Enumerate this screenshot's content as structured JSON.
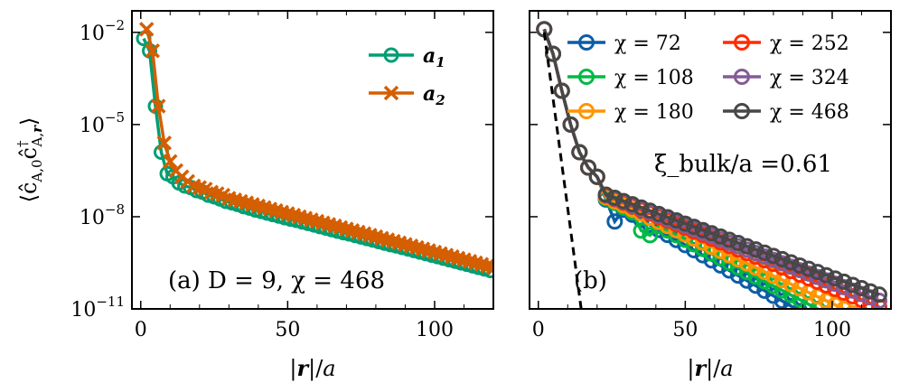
{
  "chart_data": [
    {
      "panel": "a",
      "type": "line",
      "scale_y": "log",
      "xlim": [
        -3,
        120
      ],
      "ylog_range": [
        -11,
        -1.3
      ],
      "x_ticks": [
        0,
        50,
        100
      ],
      "x_tick_labels": [
        "0",
        "50",
        "100"
      ],
      "y_ticks": [
        -2,
        -5,
        -8,
        -11
      ],
      "y_tick_labels": [
        {
          "base": "10",
          "exp": "−2"
        },
        {
          "base": "10",
          "exp": "−5"
        },
        {
          "base": "10",
          "exp": "−8"
        },
        {
          "base": "10",
          "exp": "−11"
        }
      ],
      "xlabel": "|r|/a",
      "ylabel": "⟨ĉ_{A,0} ĉ†_{A,r}⟩",
      "annotation": "(a) D = 9, χ = 468",
      "series": [
        {
          "name": "a1",
          "label_base": "a",
          "label_sub": "1",
          "color": "#009e73",
          "marker": "circle",
          "x": [
            1,
            3,
            5,
            7,
            9,
            11,
            13,
            15,
            17,
            19,
            21,
            23,
            25,
            27,
            29,
            31,
            33,
            35,
            37,
            39,
            41,
            43,
            45,
            47,
            49,
            51,
            53,
            55,
            57,
            59,
            61,
            63,
            65,
            67,
            69,
            71,
            73,
            75,
            77,
            79,
            81,
            83,
            85,
            87,
            89,
            91,
            93,
            95,
            97,
            99,
            101,
            103,
            105,
            107,
            109,
            111,
            113,
            115,
            117,
            119
          ],
          "logy": [
            -2.2,
            -2.6,
            -4.4,
            -5.9,
            -6.6,
            -6.7,
            -6.9,
            -7.0,
            -7.05,
            -7.15,
            -7.2,
            -7.3,
            -7.35,
            -7.42,
            -7.5,
            -7.55,
            -7.6,
            -7.67,
            -7.72,
            -7.78,
            -7.83,
            -7.88,
            -7.93,
            -7.98,
            -8.03,
            -8.08,
            -8.12,
            -8.17,
            -8.22,
            -8.27,
            -8.32,
            -8.37,
            -8.42,
            -8.47,
            -8.52,
            -8.56,
            -8.61,
            -8.66,
            -8.71,
            -8.76,
            -8.81,
            -8.86,
            -8.91,
            -8.95,
            -9.0,
            -9.05,
            -9.1,
            -9.15,
            -9.2,
            -9.25,
            -9.3,
            -9.35,
            -9.4,
            -9.45,
            -9.5,
            -9.55,
            -9.6,
            -9.65,
            -9.7,
            -9.75
          ]
        },
        {
          "name": "a2",
          "label_base": "a",
          "label_sub": "2",
          "color": "#d55e00",
          "marker": "x",
          "x": [
            2,
            4,
            6,
            8,
            10,
            12,
            14,
            16,
            18,
            20,
            22,
            24,
            26,
            28,
            30,
            32,
            34,
            36,
            38,
            40,
            42,
            44,
            46,
            48,
            50,
            52,
            54,
            56,
            58,
            60,
            62,
            64,
            66,
            68,
            70,
            72,
            74,
            76,
            78,
            80,
            82,
            84,
            86,
            88,
            90,
            92,
            94,
            96,
            98,
            100,
            102,
            104,
            106,
            108,
            110,
            112,
            114,
            116,
            118,
            120
          ],
          "logy": [
            -1.9,
            -2.6,
            -4.4,
            -5.6,
            -6.2,
            -6.5,
            -6.7,
            -6.85,
            -7.0,
            -7.05,
            -7.1,
            -7.2,
            -7.25,
            -7.3,
            -7.4,
            -7.45,
            -7.5,
            -7.55,
            -7.6,
            -7.65,
            -7.7,
            -7.75,
            -7.8,
            -7.85,
            -7.9,
            -7.95,
            -8.0,
            -8.05,
            -8.1,
            -8.15,
            -8.2,
            -8.25,
            -8.3,
            -8.35,
            -8.4,
            -8.45,
            -8.5,
            -8.55,
            -8.6,
            -8.65,
            -8.7,
            -8.75,
            -8.8,
            -8.85,
            -8.9,
            -8.95,
            -9.0,
            -9.05,
            -9.1,
            -9.15,
            -9.2,
            -9.25,
            -9.3,
            -9.35,
            -9.4,
            -9.45,
            -9.5,
            -9.55,
            -9.6,
            -9.65
          ]
        }
      ]
    },
    {
      "panel": "b",
      "type": "line",
      "scale_y": "log",
      "xlim": [
        -3,
        120
      ],
      "ylog_range": [
        -11,
        -1.3
      ],
      "x_ticks": [
        0,
        50,
        100
      ],
      "x_tick_labels": [
        "0",
        "50",
        "100"
      ],
      "xlabel": "|r|/a",
      "annotation": "(b)",
      "xi_label": "ξ_bulk/a =0.61",
      "fit_line": {
        "x": [
          2,
          15
        ],
        "logy": [
          -2.0,
          -11.3
        ],
        "color": "#000000",
        "style": "dashed"
      },
      "series": [
        {
          "name": "χ = 72",
          "chi": "72",
          "color": "#0c5da5",
          "x0": 2,
          "n": 39,
          "tail_start": 15,
          "tail_log": -7.0,
          "tail_slope": -0.055
        },
        {
          "name": "χ = 108",
          "chi": "108",
          "color": "#00b945",
          "x0": 2,
          "n": 39,
          "tail_start": 15,
          "tail_log": -7.0,
          "tail_slope": -0.05
        },
        {
          "name": "χ = 180",
          "chi": "180",
          "color": "#ff9500",
          "x0": 2,
          "n": 39,
          "tail_start": 15,
          "tail_log": -7.0,
          "tail_slope": -0.045
        },
        {
          "name": "χ = 252",
          "chi": "252",
          "color": "#ff2c00",
          "x0": 2,
          "n": 39,
          "tail_start": 15,
          "tail_log": -7.0,
          "tail_slope": -0.039
        },
        {
          "name": "χ = 324",
          "chi": "324",
          "color": "#845b97",
          "x0": 2,
          "n": 39,
          "tail_start": 15,
          "tail_log": -7.0,
          "tail_slope": -0.037
        },
        {
          "name": "χ = 468",
          "chi": "468",
          "color": "#474747",
          "x0": 2,
          "n": 39,
          "tail_start": 15,
          "tail_log": -7.0,
          "tail_slope": -0.035
        }
      ],
      "head_logy": [
        -1.9,
        -2.7,
        -3.9,
        -5.0,
        -5.9,
        -6.4,
        -6.7
      ]
    }
  ]
}
